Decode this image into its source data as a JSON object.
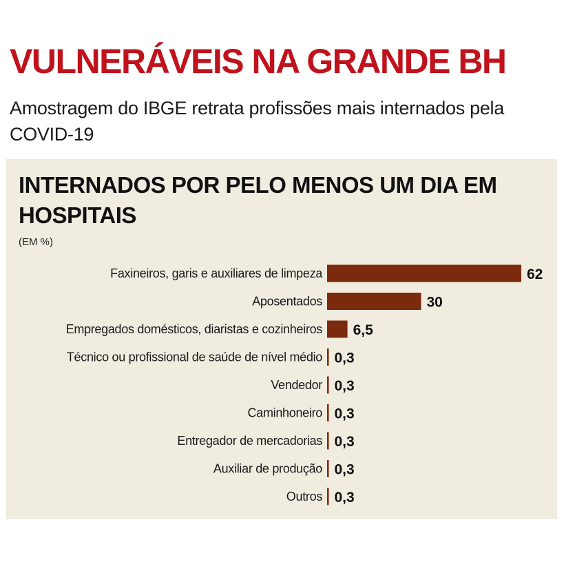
{
  "header": {
    "headline": "VULNERÁVEIS NA GRANDE BH",
    "subtitle": "Amostragem do IBGE retrata profissões mais internados pela COVID-19"
  },
  "colors": {
    "headline": "#c0121c",
    "bar": "#7b2a0e",
    "panel": "#f0ece0"
  },
  "chart_data": {
    "type": "bar",
    "orientation": "horizontal",
    "title": "INTERNADOS POR PELO MENOS UM DIA EM HOSPITAIS",
    "unit": "(EM %)",
    "categories": [
      "Faxineiros, garis e auxiliares de limpeza",
      "Aposentados",
      "Empregados domésticos, diaristas e cozinheiros",
      "Técnico ou profissional de saúde de nível médio",
      "Vendedor",
      "Caminhoneiro",
      "Entregador de mercadorias",
      "Auxiliar de produção",
      "Outros"
    ],
    "values": [
      62,
      30,
      6.5,
      0.3,
      0.3,
      0.3,
      0.3,
      0.3,
      0.3
    ],
    "value_labels": [
      "62",
      "30",
      "6,5",
      "0,3",
      "0,3",
      "0,3",
      "0,3",
      "0,3",
      "0,3"
    ],
    "grid": false,
    "legend": "none"
  }
}
